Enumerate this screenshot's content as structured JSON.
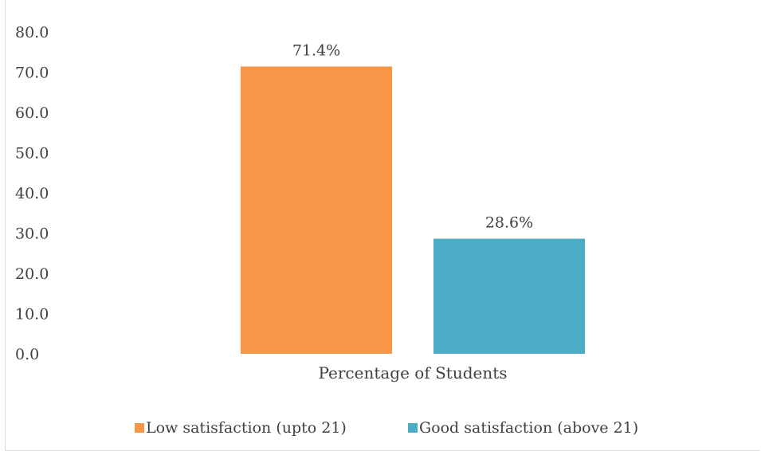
{
  "chart_data": {
    "type": "bar",
    "title": "",
    "xlabel": "",
    "ylabel": "",
    "categories": [
      "Percentage of Students"
    ],
    "series": [
      {
        "name": "Low satisfaction (upto 21)",
        "values": [
          71.4
        ],
        "data_label": "71.4%",
        "color": "#f79646"
      },
      {
        "name": "Good satisfaction (above 21)",
        "values": [
          28.6
        ],
        "data_label": "28.6%",
        "color": "#4bacc6"
      }
    ],
    "ylim": [
      0,
      80
    ],
    "yticks": [
      0,
      10,
      20,
      30,
      40,
      50,
      60,
      70,
      80
    ],
    "ytick_labels": [
      "0.0",
      "10.0",
      "20.0",
      "30.0",
      "40.0",
      "50.0",
      "60.0",
      "70.0",
      "80.0"
    ],
    "grid": false,
    "legend": "bottom"
  }
}
